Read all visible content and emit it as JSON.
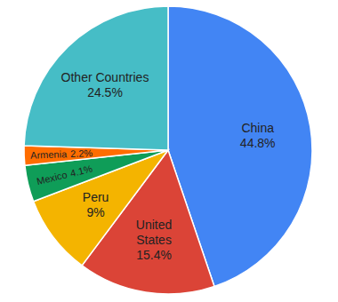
{
  "chart_data": {
    "type": "pie",
    "categories": [
      "China",
      "United States",
      "Peru",
      "Mexico",
      "Armenia",
      "Other Countries"
    ],
    "values": [
      44.8,
      15.4,
      9,
      4.1,
      2.2,
      24.5
    ],
    "value_labels": [
      "44.8%",
      "15.4%",
      "9%",
      "4.1%",
      "2.2%",
      "24.5%"
    ],
    "colors": [
      "#4285f4",
      "#db4437",
      "#f4b400",
      "#0f9d58",
      "#ff6d00",
      "#46bdc6"
    ],
    "data_labels": true
  }
}
